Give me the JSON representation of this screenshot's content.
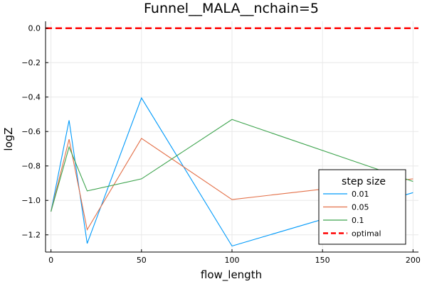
{
  "chart_data": {
    "type": "line",
    "title": "Funnel__MALA__nchain=5",
    "xlabel": "flow_length",
    "ylabel": "logZ",
    "xlim": [
      -3,
      203
    ],
    "ylim": [
      -1.3,
      0.04
    ],
    "xticks": [
      0,
      50,
      100,
      150,
      200
    ],
    "xtick_labels": [
      "0",
      "50",
      "100",
      "150",
      "200"
    ],
    "yticks": [
      0.0,
      -0.2,
      -0.4,
      -0.6,
      -0.8,
      -1.0,
      -1.2
    ],
    "ytick_labels": [
      "0.0",
      "−0.2",
      "−0.4",
      "−0.6",
      "−0.8",
      "−1.0",
      "−1.2"
    ],
    "grid": true,
    "legend": {
      "title": "step size",
      "position": "bottom-right"
    },
    "x": [
      0,
      10,
      20,
      50,
      100,
      200
    ],
    "series": [
      {
        "name": "0.01",
        "color": "#009AFA",
        "values": [
          -1.065,
          -0.535,
          -1.25,
          -0.405,
          -1.265,
          -0.955
        ]
      },
      {
        "name": "0.05",
        "color": "#E36F47",
        "values": [
          -1.065,
          -0.645,
          -1.17,
          -0.64,
          -0.995,
          -0.875
        ]
      },
      {
        "name": "0.1",
        "color": "#3EA44E",
        "values": [
          -1.065,
          -0.69,
          -0.945,
          -0.875,
          -0.53,
          -0.89
        ]
      }
    ],
    "reference_line": {
      "name": "optimal",
      "y": 0.0,
      "color": "#FF0000",
      "style": "dashed"
    }
  }
}
